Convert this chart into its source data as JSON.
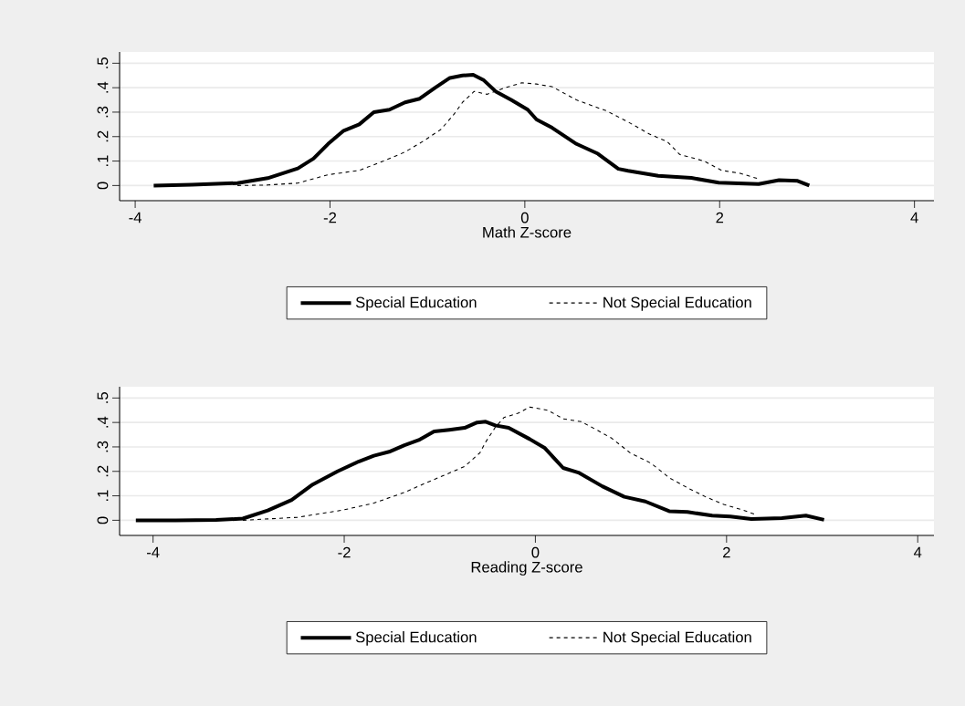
{
  "chart_data": [
    {
      "type": "line",
      "xlabel": "Math Z-score",
      "xlim": [
        -4.16,
        4.2
      ],
      "ylim": [
        -0.062,
        0.546
      ],
      "xticks": [
        -4,
        -2,
        0,
        2,
        4
      ],
      "yticks": [
        0,
        {
          "value": 0.1,
          "label": ".1"
        },
        {
          "value": 0.2,
          "label": ".2"
        },
        {
          "value": 0.3,
          "label": ".3"
        },
        {
          "value": 0.4,
          "label": ".4"
        },
        {
          "value": 0.5,
          "label": ".5"
        }
      ],
      "grid": "y",
      "legend": "bottom",
      "series": [
        {
          "name": "Special Education",
          "color": "#000000",
          "line_style": "solid",
          "x": [
            -3.81,
            -3.42,
            -2.95,
            -2.64,
            -2.33,
            -2.17,
            -2.02,
            -1.86,
            -1.7,
            -1.55,
            -1.39,
            -1.23,
            -1.08,
            -0.92,
            -0.77,
            -0.64,
            -0.53,
            -0.42,
            -0.3,
            -0.14,
            0.03,
            0.12,
            0.28,
            0.53,
            0.75,
            0.96,
            1.06,
            1.37,
            1.71,
            1.99,
            2.4,
            2.61,
            2.8,
            2.92
          ],
          "values": [
            0,
            0.003,
            0.01,
            0.03,
            0.07,
            0.11,
            0.17,
            0.224,
            0.25,
            0.3,
            0.31,
            0.34,
            0.355,
            0.4,
            0.44,
            0.45,
            0.453,
            0.43,
            0.385,
            0.35,
            0.31,
            0.27,
            0.236,
            0.17,
            0.13,
            0.068,
            0.06,
            0.04,
            0.031,
            0.012,
            0.006,
            0.022,
            0.019,
            0
          ]
        },
        {
          "name": "Not Special Education",
          "color": "#000000",
          "line_style": "dashed",
          "x": [
            -2.95,
            -2.64,
            -2.33,
            -2.02,
            -1.7,
            -1.45,
            -1.23,
            -1.02,
            -0.86,
            -0.73,
            -0.64,
            -0.52,
            -0.39,
            -0.2,
            -0.03,
            0.12,
            0.28,
            0.53,
            0.84,
            1.06,
            1.28,
            1.46,
            1.59,
            1.84,
            2.02,
            2.21,
            2.4
          ],
          "values": [
            0,
            0.002,
            0.01,
            0.044,
            0.062,
            0.1,
            0.137,
            0.187,
            0.23,
            0.29,
            0.34,
            0.385,
            0.373,
            0.4,
            0.42,
            0.415,
            0.404,
            0.35,
            0.305,
            0.26,
            0.21,
            0.18,
            0.127,
            0.1,
            0.062,
            0.05,
            0.027
          ]
        }
      ]
    },
    {
      "type": "line",
      "xlabel": "Reading Z-score",
      "xlim": [
        -4.35,
        4.17
      ],
      "ylim": [
        -0.062,
        0.546
      ],
      "xticks": [
        -4,
        -2,
        0,
        2,
        4
      ],
      "yticks": [
        0,
        {
          "value": 0.1,
          "label": ".1"
        },
        {
          "value": 0.2,
          "label": ".2"
        },
        {
          "value": 0.3,
          "label": ".3"
        },
        {
          "value": 0.4,
          "label": ".4"
        },
        {
          "value": 0.5,
          "label": ".5"
        }
      ],
      "grid": "y",
      "legend": "bottom",
      "series": [
        {
          "name": "Special Education",
          "color": "#000000",
          "line_style": "solid",
          "x": [
            -4.18,
            -3.76,
            -3.34,
            -3.06,
            -2.8,
            -2.55,
            -2.33,
            -2.07,
            -1.85,
            -1.69,
            -1.53,
            -1.37,
            -1.22,
            -1.06,
            -0.9,
            -0.74,
            -0.61,
            -0.52,
            -0.42,
            -0.28,
            -0.06,
            0.1,
            0.29,
            0.45,
            0.7,
            0.93,
            1.15,
            1.4,
            1.59,
            1.85,
            2.04,
            2.26,
            2.58,
            2.83,
            3.02
          ],
          "values": [
            0,
            0,
            0.001,
            0.007,
            0.04,
            0.083,
            0.146,
            0.2,
            0.24,
            0.264,
            0.28,
            0.307,
            0.328,
            0.363,
            0.37,
            0.378,
            0.4,
            0.403,
            0.388,
            0.378,
            0.332,
            0.295,
            0.214,
            0.195,
            0.139,
            0.096,
            0.077,
            0.037,
            0.034,
            0.019,
            0.015,
            0.005,
            0.009,
            0.019,
            0.002
          ]
        },
        {
          "name": "Not Special Education",
          "color": "#000000",
          "line_style": "dashed",
          "x": [
            -3.06,
            -2.49,
            -2.01,
            -1.69,
            -1.37,
            -1.15,
            -0.96,
            -0.74,
            -0.58,
            -0.52,
            -0.42,
            -0.33,
            -0.18,
            -0.06,
            0.13,
            0.29,
            0.48,
            0.64,
            0.8,
            0.99,
            1.21,
            1.4,
            1.59,
            1.78,
            1.97,
            2.17,
            2.32
          ],
          "values": [
            0,
            0.012,
            0.042,
            0.07,
            0.114,
            0.152,
            0.183,
            0.22,
            0.276,
            0.32,
            0.38,
            0.42,
            0.438,
            0.463,
            0.45,
            0.415,
            0.403,
            0.37,
            0.335,
            0.276,
            0.233,
            0.174,
            0.133,
            0.096,
            0.065,
            0.042,
            0.021
          ]
        }
      ]
    }
  ]
}
